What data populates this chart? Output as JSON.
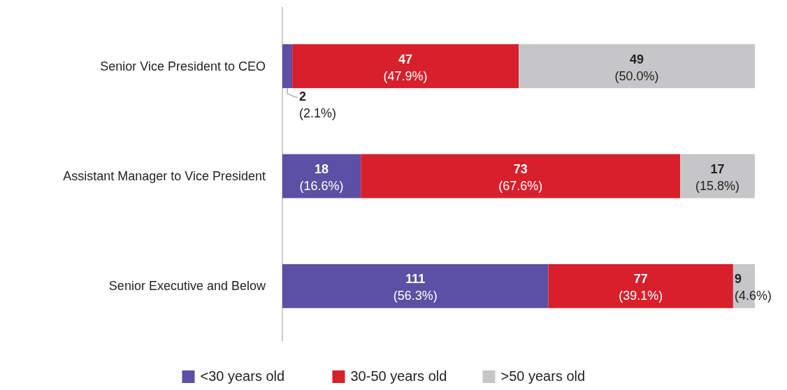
{
  "chart_data": {
    "type": "bar",
    "orientation": "horizontal",
    "stacked": true,
    "categories": [
      "Senior Vice President to CEO",
      "Assistant Manager to Vice President",
      "Senior Executive and Below"
    ],
    "series": [
      {
        "name": "<30 years old",
        "color": "#5b50a3",
        "values": [
          2.1,
          16.6,
          56.3
        ],
        "value_labels": [
          "2\n(2.1%)",
          "18\n(16.6%)",
          "111\n(56.3%)"
        ]
      },
      {
        "name": "30-50 years old",
        "color": "#d7202c",
        "values": [
          47.9,
          67.6,
          39.1
        ],
        "value_labels": [
          "47\n(47.9%)",
          "73\n(67.6%)",
          "77\n(39.1%)"
        ]
      },
      {
        "name": ">50 years old",
        "color": "#c6c6c8",
        "values": [
          50.0,
          15.8,
          4.6
        ],
        "value_labels": [
          "49\n(50.0%)",
          "17\n(15.8%)",
          "9\n(4.6%)"
        ]
      }
    ],
    "xlim": [
      0,
      100
    ],
    "tick_labels": "y",
    "legend": "bottom"
  }
}
